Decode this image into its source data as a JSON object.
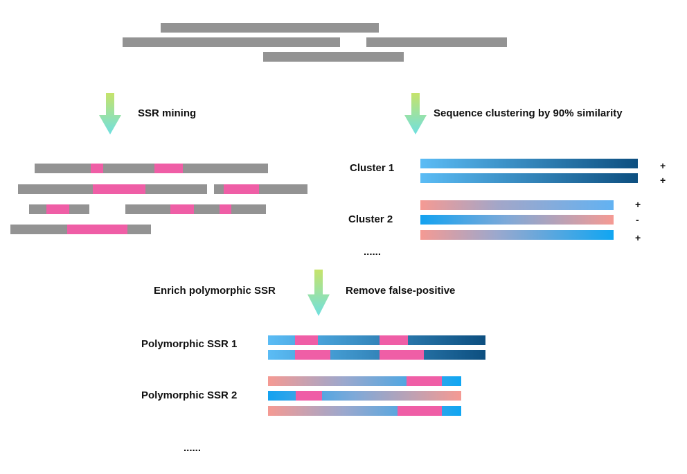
{
  "labels": {
    "ssr_mining": "SSR mining",
    "clustering": "Sequence clustering by 90% similarity",
    "cluster1": "Cluster 1",
    "cluster2": "Cluster 2",
    "ellipsis_clusters": "......",
    "enrich": "Enrich polymorphic SSR",
    "remove": "Remove false-positive",
    "poly1": "Polymorphic SSR 1",
    "poly2": "Polymorphic SSR 2",
    "ellipsis_poly": "......"
  },
  "cluster1_strands": [
    "+",
    "+"
  ],
  "cluster2_strands": [
    "+",
    "-",
    "+"
  ],
  "colors": {
    "read_gray": "#939393",
    "ssr_pink": "#ef5ea6",
    "blue_light": "#5bbcf5",
    "blue_dark": "#0d4f80",
    "salmon": "#f59a93",
    "sky_blue": "#10a6f2",
    "arrow_top": "#c6e36a",
    "arrow_bottom": "#6fe0e0"
  }
}
